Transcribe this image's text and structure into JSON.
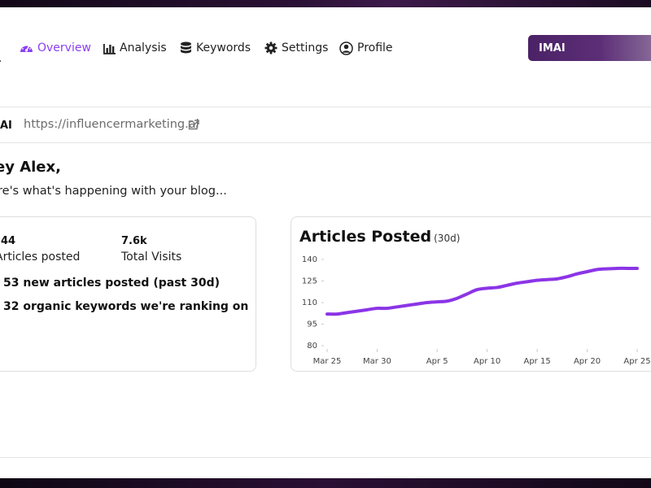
{
  "nav": {
    "items": [
      {
        "label": "Overview",
        "icon": "dashboard-icon",
        "active": true
      },
      {
        "label": "Analysis",
        "icon": "bar-chart-icon",
        "active": false
      },
      {
        "label": "Keywords",
        "icon": "database-icon",
        "active": false
      },
      {
        "label": "Settings",
        "icon": "gear-icon",
        "active": false
      },
      {
        "label": "Profile",
        "icon": "user-circle-icon",
        "active": false
      }
    ],
    "brand_button": "IMAI"
  },
  "site": {
    "abbr": "AI",
    "url": "https://influencermarketing.ai"
  },
  "greeting": "ey Alex,",
  "subtitle": "re's what's happening with your blog...",
  "stats": {
    "articles_value": "44",
    "articles_label": "Articles posted",
    "visits_value": "7.6k",
    "visits_label": "Total Visits",
    "new_articles": "53 new articles posted (past 30d)",
    "keywords": "32 organic keywords we're ranking on"
  },
  "colors": {
    "accent": "#8a3ff2",
    "line": "#8b35e6"
  },
  "chart_data": {
    "type": "line",
    "title": "Articles Posted",
    "subtitle": "(30d)",
    "x": [
      "Mar 25",
      "Mar 26",
      "Mar 27",
      "Mar 28",
      "Mar 29",
      "Mar 30",
      "Mar 31",
      "Apr 1",
      "Apr 2",
      "Apr 3",
      "Apr 4",
      "Apr 5",
      "Apr 6",
      "Apr 7",
      "Apr 8",
      "Apr 9",
      "Apr 10",
      "Apr 11",
      "Apr 12",
      "Apr 13",
      "Apr 14",
      "Apr 15",
      "Apr 16",
      "Apr 17",
      "Apr 18",
      "Apr 19",
      "Apr 20",
      "Apr 21",
      "Apr 22",
      "Apr 23",
      "Apr 24",
      "Apr 25"
    ],
    "tick_labels": [
      "Mar 25",
      "Mar 30",
      "Apr 5",
      "Apr 10",
      "Apr 15",
      "Apr 20",
      "Apr 25"
    ],
    "tick_indices": [
      0,
      5,
      11,
      16,
      21,
      26,
      31
    ],
    "y_ticks": [
      80,
      95,
      110,
      125,
      140
    ],
    "ylim": [
      80,
      140
    ],
    "series": [
      {
        "values": [
          102,
          102,
          103,
          104,
          105,
          106,
          106,
          107,
          108,
          109,
          110,
          110.5,
          111,
          113,
          116,
          119,
          120,
          120.5,
          122,
          123.5,
          124.5,
          125.5,
          126,
          126.5,
          128,
          130,
          131.5,
          133,
          133.5,
          133.8,
          133.8,
          133.8
        ]
      }
    ],
    "grid": false
  }
}
